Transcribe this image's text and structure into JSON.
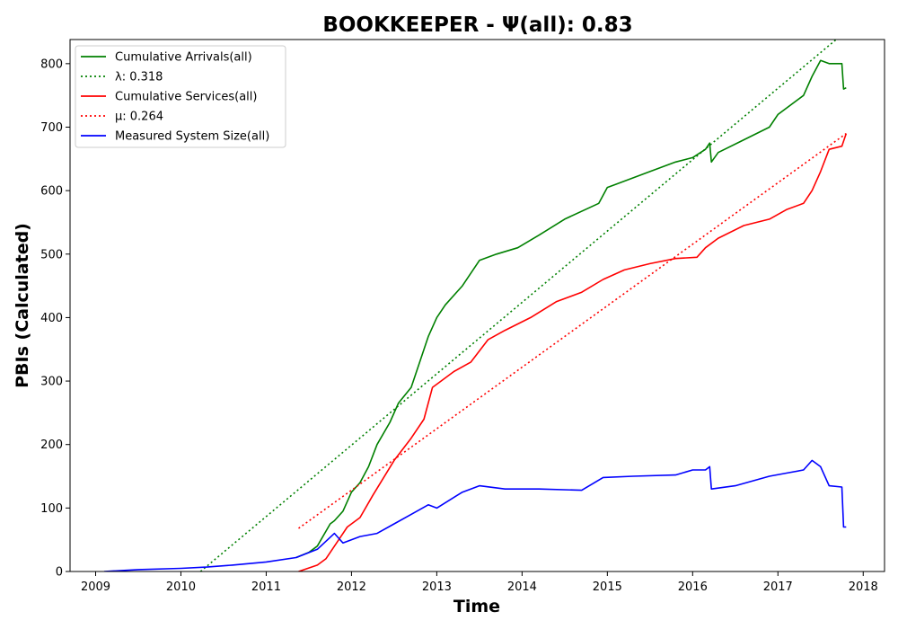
{
  "chart_data": {
    "type": "line",
    "title": "BOOKKEEPER -  Ψ(all): 0.83",
    "xlabel": "Time",
    "ylabel": "PBIs (Calculated)",
    "xlim": [
      2008.7,
      2018.25
    ],
    "ylim": [
      0,
      838
    ],
    "x_ticks": [
      "2009",
      "2010",
      "2011",
      "2012",
      "2013",
      "2014",
      "2015",
      "2016",
      "2017",
      "2018"
    ],
    "y_ticks": [
      "0",
      "100",
      "200",
      "300",
      "400",
      "500",
      "600",
      "700",
      "800"
    ],
    "grid": false,
    "legend_position": "upper-left",
    "series": [
      {
        "name": "Cumulative Arrivals(all)",
        "style": "solid",
        "color": "#008000",
        "x": [
          2011.35,
          2011.5,
          2011.6,
          2011.75,
          2011.8,
          2011.9,
          2012.0,
          2012.1,
          2012.2,
          2012.3,
          2012.45,
          2012.55,
          2012.7,
          2012.8,
          2012.9,
          2013.0,
          2013.1,
          2013.3,
          2013.5,
          2013.7,
          2013.95,
          2014.2,
          2014.5,
          2014.9,
          2015.0,
          2015.1,
          2015.5,
          2015.8,
          2016.0,
          2016.15,
          2016.2,
          2016.22,
          2016.3,
          2016.6,
          2016.9,
          2017.0,
          2017.3,
          2017.4,
          2017.5,
          2017.6,
          2017.75,
          2017.77,
          2017.8
        ],
        "y": [
          22,
          30,
          40,
          75,
          80,
          95,
          125,
          140,
          165,
          200,
          235,
          265,
          290,
          330,
          370,
          400,
          420,
          450,
          490,
          500,
          510,
          530,
          555,
          580,
          605,
          610,
          630,
          645,
          652,
          665,
          675,
          645,
          660,
          680,
          700,
          720,
          750,
          780,
          805,
          800,
          800,
          760,
          762
        ]
      },
      {
        "name": "λ: 0.318",
        "style": "dotted",
        "color": "#008000",
        "x": [
          2010.23,
          2017.7
        ],
        "y": [
          0,
          840
        ]
      },
      {
        "name": "Cumulative Services(all)",
        "style": "solid",
        "color": "#ff0000",
        "x": [
          2011.38,
          2011.6,
          2011.7,
          2011.85,
          2011.95,
          2012.1,
          2012.25,
          2012.5,
          2012.7,
          2012.85,
          2012.95,
          2013.05,
          2013.2,
          2013.4,
          2013.6,
          2013.8,
          2014.1,
          2014.4,
          2014.7,
          2014.95,
          2015.2,
          2015.5,
          2015.8,
          2016.05,
          2016.15,
          2016.3,
          2016.6,
          2016.9,
          2017.1,
          2017.3,
          2017.4,
          2017.5,
          2017.6,
          2017.75,
          2017.8
        ],
        "y": [
          0,
          10,
          20,
          50,
          70,
          85,
          120,
          175,
          210,
          240,
          290,
          300,
          315,
          330,
          365,
          380,
          400,
          425,
          440,
          460,
          475,
          485,
          493,
          495,
          510,
          525,
          545,
          555,
          570,
          580,
          600,
          630,
          665,
          670,
          690
        ]
      },
      {
        "name": "μ: 0.264",
        "style": "dotted",
        "color": "#ff0000",
        "x": [
          2011.38,
          2017.8
        ],
        "y": [
          68,
          690
        ]
      },
      {
        "name": "Measured System Size(all)",
        "style": "solid",
        "color": "#0000ff",
        "x": [
          2009.1,
          2009.5,
          2010.0,
          2010.3,
          2010.6,
          2011.0,
          2011.35,
          2011.6,
          2011.8,
          2011.9,
          2012.1,
          2012.3,
          2012.5,
          2012.7,
          2012.9,
          2013.0,
          2013.3,
          2013.5,
          2013.8,
          2014.2,
          2014.7,
          2014.95,
          2015.3,
          2015.8,
          2016.0,
          2016.15,
          2016.2,
          2016.22,
          2016.5,
          2016.9,
          2017.1,
          2017.3,
          2017.4,
          2017.5,
          2017.6,
          2017.75,
          2017.77,
          2017.8
        ],
        "y": [
          0,
          3,
          5,
          7,
          10,
          15,
          22,
          35,
          60,
          45,
          55,
          60,
          75,
          90,
          105,
          100,
          125,
          135,
          130,
          130,
          128,
          148,
          150,
          152,
          160,
          160,
          165,
          130,
          135,
          150,
          155,
          160,
          175,
          165,
          135,
          133,
          70,
          70
        ]
      }
    ]
  }
}
